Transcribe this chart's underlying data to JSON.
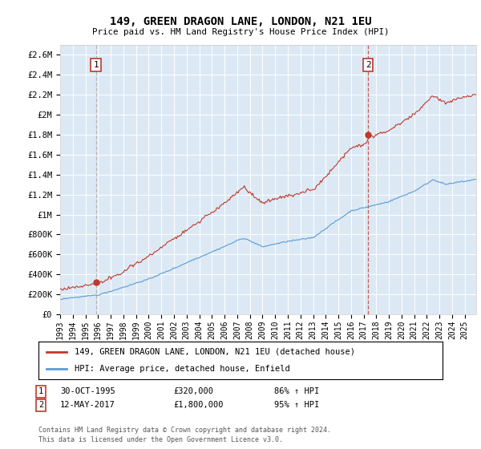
{
  "title": "149, GREEN DRAGON LANE, LONDON, N21 1EU",
  "subtitle": "Price paid vs. HM Land Registry's House Price Index (HPI)",
  "ylabel_ticks": [
    "£0",
    "£200K",
    "£400K",
    "£600K",
    "£800K",
    "£1M",
    "£1.2M",
    "£1.4M",
    "£1.6M",
    "£1.8M",
    "£2M",
    "£2.2M",
    "£2.4M",
    "£2.6M"
  ],
  "ytick_values": [
    0,
    200000,
    400000,
    600000,
    800000,
    1000000,
    1200000,
    1400000,
    1600000,
    1800000,
    2000000,
    2200000,
    2400000,
    2600000
  ],
  "ylim": [
    0,
    2700000
  ],
  "xmin": 1993.0,
  "xmax": 2025.9,
  "xticks": [
    1993,
    1994,
    1995,
    1996,
    1997,
    1998,
    1999,
    2000,
    2001,
    2002,
    2003,
    2004,
    2005,
    2006,
    2007,
    2008,
    2009,
    2010,
    2011,
    2012,
    2013,
    2014,
    2015,
    2016,
    2017,
    2018,
    2019,
    2020,
    2021,
    2022,
    2023,
    2024,
    2025
  ],
  "sale1_x": 1995.83,
  "sale1_y": 320000,
  "sale1_label": "1",
  "sale2_x": 2017.36,
  "sale2_y": 1800000,
  "sale2_label": "2",
  "legend_line1": "149, GREEN DRAGON LANE, LONDON, N21 1EU (detached house)",
  "legend_line2": "HPI: Average price, detached house, Enfield",
  "row1_num": "1",
  "row1_date": "30-OCT-1995",
  "row1_price": "£320,000",
  "row1_hpi": "86% ↑ HPI",
  "row2_num": "2",
  "row2_date": "12-MAY-2017",
  "row2_price": "£1,800,000",
  "row2_hpi": "95% ↑ HPI",
  "footnote": "Contains HM Land Registry data © Crown copyright and database right 2024.\nThis data is licensed under the Open Government Licence v3.0.",
  "sale_color": "#c0392b",
  "hpi_color": "#5b9bd5",
  "vline1_color": "#aaaaaa",
  "vline2_color": "#c0392b",
  "plot_bg_color": "#dce9f5",
  "fig_bg_color": "#ffffff",
  "grid_color": "#ffffff"
}
